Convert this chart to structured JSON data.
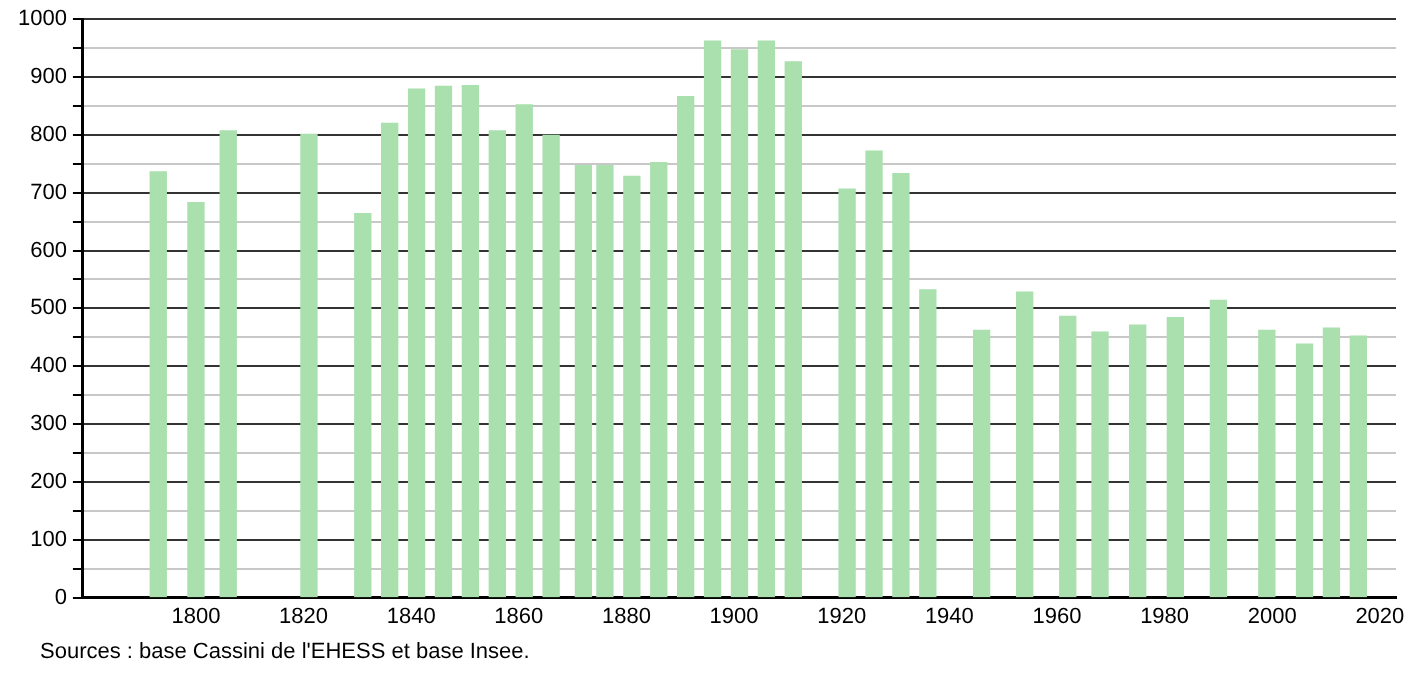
{
  "chart_data": {
    "type": "bar",
    "x": [
      1793,
      1800,
      1806,
      1821,
      1831,
      1836,
      1841,
      1846,
      1851,
      1856,
      1861,
      1866,
      1872,
      1876,
      1881,
      1886,
      1891,
      1896,
      1901,
      1906,
      1911,
      1921,
      1926,
      1931,
      1936,
      1946,
      1954,
      1962,
      1968,
      1975,
      1982,
      1990,
      1999,
      2006,
      2011,
      2016
    ],
    "values": [
      736,
      683,
      807,
      801,
      664,
      820,
      879,
      884,
      885,
      807,
      852,
      799,
      747,
      747,
      728,
      752,
      866,
      962,
      947,
      962,
      926,
      706,
      772,
      733,
      532,
      462,
      528,
      486,
      459,
      471,
      484,
      514,
      462,
      438,
      466,
      452
    ],
    "color": "#a9e0ad",
    "xlim": [
      1779,
      2023
    ],
    "xticks": [
      1800,
      1820,
      1840,
      1860,
      1880,
      1900,
      1920,
      1940,
      1960,
      1980,
      2000,
      2020
    ],
    "ylim": [
      0,
      1000
    ],
    "yticks": [
      0,
      {
        "value": 50,
        "label": null
      },
      100,
      {
        "value": 150,
        "label": null
      },
      200,
      {
        "value": 250,
        "label": null
      },
      300,
      {
        "value": 350,
        "label": null
      },
      400,
      {
        "value": 450,
        "label": null
      },
      500,
      {
        "value": 550,
        "label": null
      },
      600,
      {
        "value": 650,
        "label": null
      },
      700,
      {
        "value": 750,
        "label": null
      },
      800,
      {
        "value": 850,
        "label": null
      },
      900,
      {
        "value": 950,
        "label": null
      },
      1000
    ],
    "grid": "y",
    "annotations": [
      "Sources : base Cassini de l'EHESS et base Insee."
    ]
  }
}
